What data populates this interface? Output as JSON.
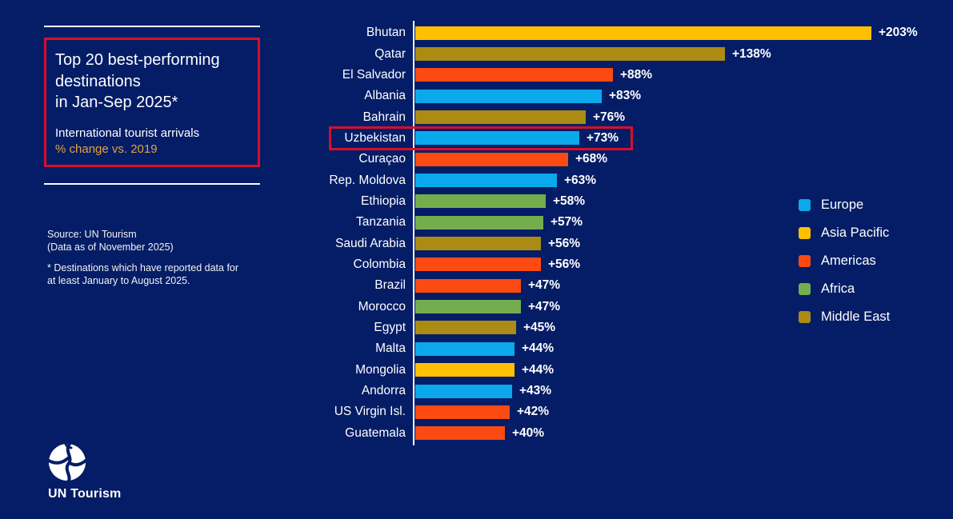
{
  "colors": {
    "background": "#041D66",
    "accent_red": "#D6102B",
    "axis_white": "#FDFDFD",
    "subtitle_gold": "#E2A33C",
    "regions": {
      "Europe": "#0BA9EC",
      "Asia Pacific": "#FFC003",
      "Americas": "#FB4A12",
      "Africa": "#74AD4E",
      "Middle East": "#AB8B13"
    }
  },
  "panel": {
    "title_lines": [
      "Top 20 best-performing",
      "destinations",
      "in Jan-Sep 2025*"
    ],
    "subtitle_line1": "International tourist arrivals",
    "subtitle_line2": "% change vs. 2019",
    "source_line1": "Source: UN Tourism",
    "source_line2": "(Data as of November 2025)",
    "note_line1": "* Destinations which have reported data for",
    "note_line2": "at least January to August 2025.",
    "logo_text": "UN Tourism"
  },
  "chart_data": {
    "type": "bar",
    "orientation": "horizontal",
    "title": "Top 20 best-performing destinations in Jan-Sep 2025*",
    "subtitle": "International tourist arrivals % change vs. 2019",
    "xlim": [
      0,
      210
    ],
    "grid": false,
    "legend_position": "right",
    "categories": [
      "Bhutan",
      "Qatar",
      "El Salvador",
      "Albania",
      "Bahrain",
      "Uzbekistan",
      "Curaçao",
      "Rep. Moldova",
      "Ethiopia",
      "Tanzania",
      "Saudi Arabia",
      "Colombia",
      "Brazil",
      "Morocco",
      "Egypt",
      "Malta",
      "Mongolia",
      "Andorra",
      "US Virgin Isl.",
      "Guatemala"
    ],
    "values": [
      203,
      138,
      88,
      83,
      76,
      73,
      68,
      63,
      58,
      57,
      56,
      56,
      47,
      47,
      45,
      44,
      44,
      43,
      42,
      40
    ],
    "value_labels": [
      "+203%",
      "+138%",
      "+88%",
      "+83%",
      "+76%",
      "+73%",
      "+68%",
      "+63%",
      "+58%",
      "+57%",
      "+56%",
      "+56%",
      "+47%",
      "+47%",
      "+45%",
      "+44%",
      "+44%",
      "+43%",
      "+42%",
      "+40%"
    ],
    "regions": [
      "Asia Pacific",
      "Middle East",
      "Americas",
      "Europe",
      "Middle East",
      "Europe",
      "Americas",
      "Europe",
      "Africa",
      "Africa",
      "Middle East",
      "Americas",
      "Americas",
      "Africa",
      "Middle East",
      "Europe",
      "Asia Pacific",
      "Europe",
      "Americas",
      "Americas"
    ],
    "highlighted_category": "Uzbekistan",
    "legend": [
      "Europe",
      "Asia Pacific",
      "Americas",
      "Africa",
      "Middle East"
    ]
  }
}
